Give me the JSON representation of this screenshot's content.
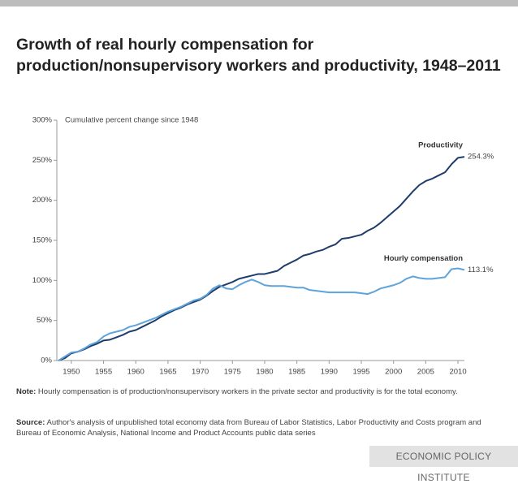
{
  "chart_data": {
    "type": "line",
    "title": "Growth of real hourly compensation for production/nonsupervisory workers and productivity, 1948–2011",
    "y_axis_label": "Cumulative percent change since 1948",
    "x": [
      1948,
      1949,
      1950,
      1951,
      1952,
      1953,
      1954,
      1955,
      1956,
      1957,
      1958,
      1959,
      1960,
      1961,
      1962,
      1963,
      1964,
      1965,
      1966,
      1967,
      1968,
      1969,
      1970,
      1971,
      1972,
      1973,
      1974,
      1975,
      1976,
      1977,
      1978,
      1979,
      1980,
      1981,
      1982,
      1983,
      1984,
      1985,
      1986,
      1987,
      1988,
      1989,
      1990,
      1991,
      1992,
      1993,
      1994,
      1995,
      1996,
      1997,
      1998,
      1999,
      2000,
      2001,
      2002,
      2003,
      2004,
      2005,
      2006,
      2007,
      2008,
      2009,
      2010,
      2011
    ],
    "series": [
      {
        "name": "Productivity",
        "color": "#1f3d6b",
        "values": [
          0,
          3,
          9,
          11,
          14,
          18,
          21,
          25,
          26,
          29,
          32,
          36,
          38,
          42,
          46,
          50,
          55,
          59,
          63,
          66,
          70,
          73,
          76,
          81,
          87,
          92,
          95,
          98,
          102,
          104,
          106,
          108,
          108,
          110,
          112,
          118,
          122,
          126,
          131,
          133,
          136,
          138,
          142,
          145,
          152,
          153,
          155,
          157,
          162,
          166,
          172,
          179,
          186,
          193,
          202,
          211,
          219,
          224,
          227,
          231,
          235,
          245,
          253,
          254.3
        ],
        "value_labels": [
          null,
          null,
          null,
          null,
          null,
          null,
          null,
          null,
          null,
          null,
          null,
          null,
          null,
          null,
          null,
          null,
          null,
          null,
          null,
          null,
          null,
          null,
          null,
          null,
          null,
          null,
          null,
          null,
          null,
          null,
          null,
          null,
          null,
          null,
          null,
          null,
          null,
          null,
          null,
          null,
          null,
          null,
          null,
          null,
          null,
          null,
          null,
          null,
          null,
          null,
          null,
          null,
          null,
          null,
          null,
          null,
          null,
          null,
          null,
          null,
          null,
          null,
          null,
          "254.3%"
        ]
      },
      {
        "name": "Hourly compensation",
        "color": "#5ea3d9",
        "values": [
          0,
          5,
          10,
          11,
          15,
          20,
          23,
          30,
          34,
          36,
          38,
          42,
          44,
          47,
          50,
          53,
          57,
          61,
          64,
          67,
          71,
          75,
          77,
          82,
          90,
          94,
          90,
          89,
          94,
          98,
          101,
          98,
          94,
          93,
          93,
          93,
          92,
          91,
          91,
          88,
          87,
          86,
          85,
          85,
          85,
          85,
          85,
          84,
          83,
          86,
          90,
          92,
          94,
          97,
          102,
          105,
          103,
          102,
          102,
          103,
          104,
          114,
          115,
          113.1
        ],
        "value_labels": [
          null,
          null,
          null,
          null,
          null,
          null,
          null,
          null,
          null,
          null,
          null,
          null,
          null,
          null,
          null,
          null,
          null,
          null,
          null,
          null,
          null,
          null,
          null,
          null,
          null,
          null,
          null,
          null,
          null,
          null,
          null,
          null,
          null,
          null,
          null,
          null,
          null,
          null,
          null,
          null,
          null,
          null,
          null,
          null,
          null,
          null,
          null,
          null,
          null,
          null,
          null,
          null,
          null,
          null,
          null,
          null,
          null,
          null,
          null,
          null,
          null,
          null,
          null,
          "113.1%"
        ]
      }
    ],
    "xlim": [
      1948,
      2011
    ],
    "xticks": [
      1950,
      1955,
      1960,
      1965,
      1970,
      1975,
      1980,
      1985,
      1990,
      1995,
      2000,
      2005,
      2010
    ],
    "ylim": [
      0,
      300
    ],
    "yticks": [
      {
        "value": 0,
        "label": "0%"
      },
      {
        "value": 50,
        "label": "50%"
      },
      {
        "value": 100,
        "label": "100%"
      },
      {
        "value": 150,
        "label": "150%"
      },
      {
        "value": 200,
        "label": "200%"
      },
      {
        "value": 250,
        "label": "250%"
      },
      {
        "value": 300,
        "label": "300%"
      }
    ],
    "grid": false,
    "note": {
      "label": "Note:",
      "text": "Hourly compensation is of production/nonsupervisory workers in the private sector and productivity is for the total economy."
    },
    "source": {
      "label": "Source:",
      "text": "Author's analysis of unpublished total economy data from Bureau of Labor Statistics, Labor Productivity and Costs program and Bureau of Economic Analysis, National Income and Product Accounts public data series"
    },
    "footer": "ECONOMIC POLICY INSTITUTE"
  }
}
